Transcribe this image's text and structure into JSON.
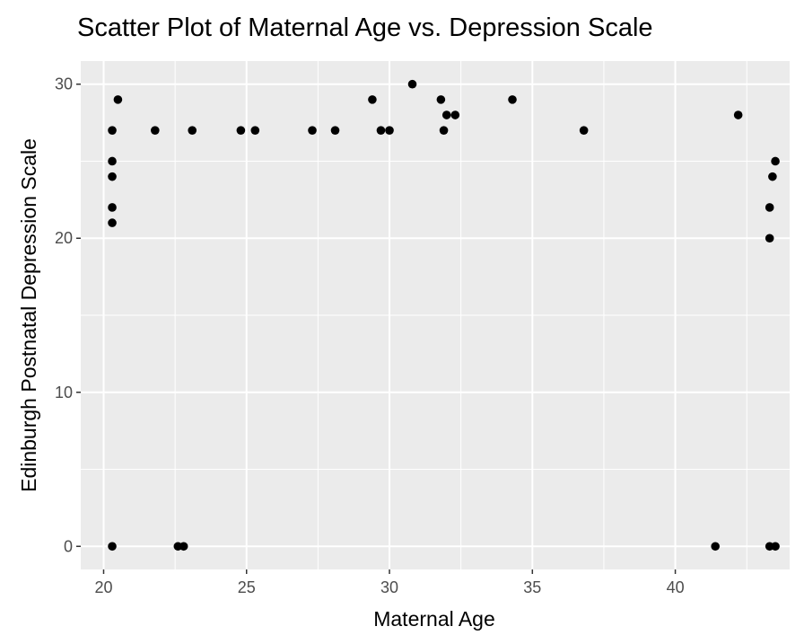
{
  "chart_data": {
    "type": "scatter",
    "title": "Scatter Plot of Maternal Age vs. Depression Scale",
    "xlabel": "Maternal Age",
    "ylabel": "Edinburgh Postnatal Depression Scale",
    "xlim": [
      19.2,
      44.0
    ],
    "ylim": [
      -1.5,
      31.5
    ],
    "x_ticks": [
      20,
      25,
      30,
      35,
      40
    ],
    "x_tick_labels": [
      "20",
      "25",
      "30",
      "35",
      "40"
    ],
    "y_ticks": [
      0,
      10,
      20,
      30
    ],
    "y_tick_labels": [
      "0",
      "10",
      "20",
      "30"
    ],
    "grid": true,
    "legend": "none",
    "colors": {
      "panel": "#ebebeb",
      "grid": "#ffffff",
      "point": "#000000",
      "tick_label": "#4d4d4d",
      "text": "#000000"
    },
    "series": [
      {
        "points": [
          {
            "x": 20.3,
            "y": 0
          },
          {
            "x": 20.3,
            "y": 27
          },
          {
            "x": 20.5,
            "y": 29
          },
          {
            "x": 21.8,
            "y": 27
          },
          {
            "x": 29.4,
            "y": 29
          },
          {
            "x": 30.8,
            "y": 30
          },
          {
            "x": 31.8,
            "y": 29
          },
          {
            "x": 32.0,
            "y": 28
          },
          {
            "x": 32.3,
            "y": 28
          },
          {
            "x": 34.3,
            "y": 29
          },
          {
            "x": 42.2,
            "y": 28
          },
          {
            "x": 23.1,
            "y": 27
          },
          {
            "x": 24.8,
            "y": 27
          },
          {
            "x": 25.3,
            "y": 27
          },
          {
            "x": 27.3,
            "y": 27
          },
          {
            "x": 28.1,
            "y": 27
          },
          {
            "x": 29.7,
            "y": 27
          },
          {
            "x": 30.0,
            "y": 27
          },
          {
            "x": 31.9,
            "y": 27
          },
          {
            "x": 36.8,
            "y": 27
          },
          {
            "x": 22.6,
            "y": 0
          },
          {
            "x": 22.8,
            "y": 0
          },
          {
            "x": 43.3,
            "y": 0
          },
          {
            "x": 43.5,
            "y": 0
          },
          {
            "x": 41.4,
            "y": 0
          },
          {
            "x": 43.5,
            "y": 25
          },
          {
            "x": 43.4,
            "y": 24
          },
          {
            "x": 43.3,
            "y": 22
          },
          {
            "x": 43.3,
            "y": 20
          },
          {
            "x": 20.3,
            "y": 25
          },
          {
            "x": 20.3,
            "y": 24
          },
          {
            "x": 20.3,
            "y": 22
          },
          {
            "x": 20.3,
            "y": 21
          }
        ]
      }
    ]
  }
}
